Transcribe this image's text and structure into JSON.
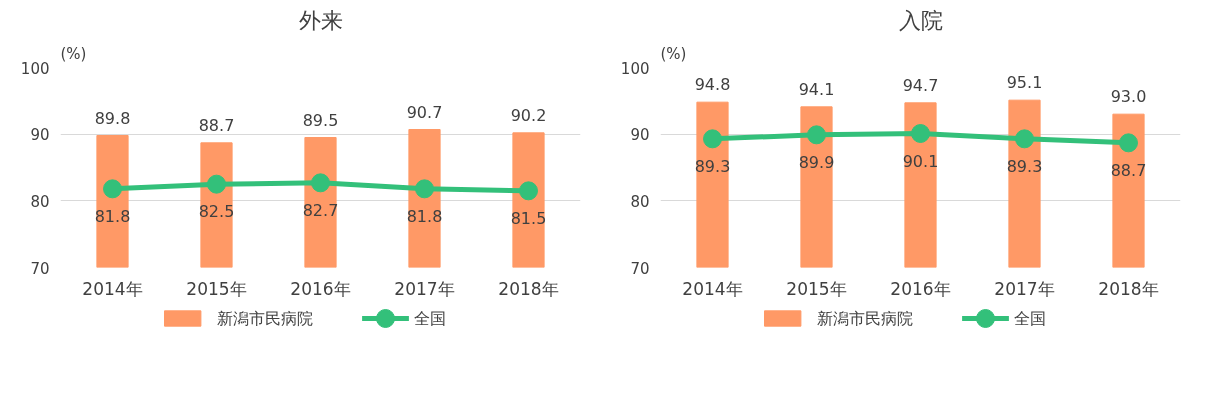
{
  "chart_data": [
    {
      "type": "bar",
      "title": "外来",
      "ylabel": "(%)",
      "categories": [
        "2014年",
        "2015年",
        "2016年",
        "2017年",
        "2018年"
      ],
      "ylim": [
        70,
        100
      ],
      "yticks": [
        70,
        80,
        90,
        100
      ],
      "grid": "y",
      "legend": "bottom",
      "series": [
        {
          "name": "新潟市民病院",
          "color": "#ff9966",
          "values": [
            89.8,
            88.7,
            89.5,
            90.7,
            90.2
          ],
          "value_labels": [
            "89.8",
            "88.7",
            "89.5",
            "90.7",
            "90.2"
          ]
        },
        {
          "name": "全国",
          "type": "line",
          "color": "#33c07a",
          "marker": "circle",
          "values": [
            81.8,
            82.5,
            82.7,
            81.8,
            81.5
          ],
          "value_labels": [
            "81.8",
            "82.5",
            "82.7",
            "81.8",
            "81.5"
          ]
        }
      ]
    },
    {
      "type": "bar",
      "title": "入院",
      "ylabel": "(%)",
      "categories": [
        "2014年",
        "2015年",
        "2016年",
        "2017年",
        "2018年"
      ],
      "ylim": [
        70,
        100
      ],
      "yticks": [
        70,
        80,
        90,
        100
      ],
      "grid": "y",
      "legend": "bottom",
      "series": [
        {
          "name": "新潟市民病院",
          "color": "#ff9966",
          "values": [
            94.8,
            94.1,
            94.7,
            95.1,
            93.0
          ],
          "value_labels": [
            "94.8",
            "94.1",
            "94.7",
            "95.1",
            "93.0"
          ]
        },
        {
          "name": "全国",
          "type": "line",
          "color": "#33c07a",
          "marker": "circle",
          "values": [
            89.3,
            89.9,
            90.1,
            89.3,
            88.7
          ],
          "value_labels": [
            "89.3",
            "89.9",
            "90.1",
            "89.3",
            "88.7"
          ]
        }
      ]
    }
  ]
}
